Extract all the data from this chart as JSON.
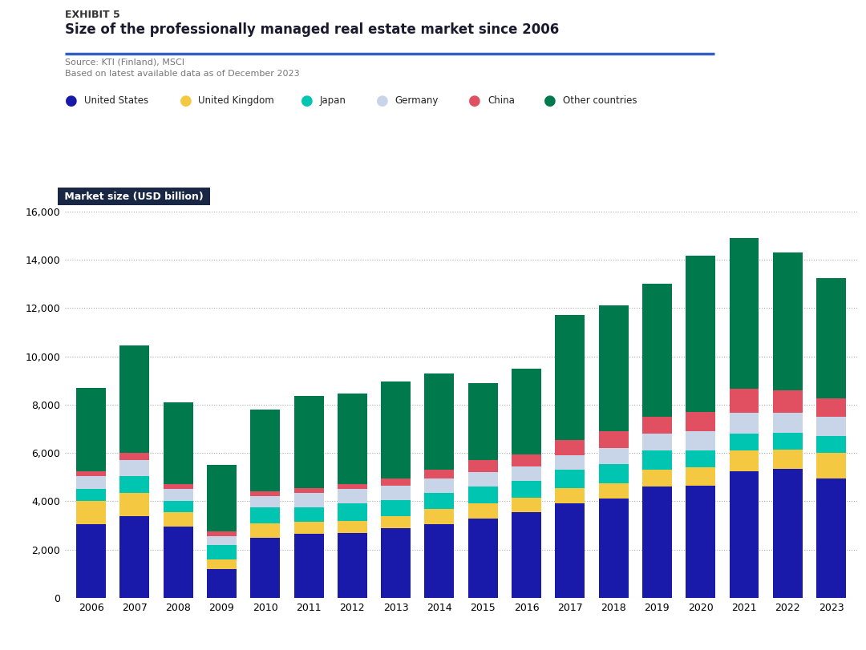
{
  "years": [
    2006,
    2007,
    2008,
    2009,
    2010,
    2011,
    2012,
    2013,
    2014,
    2015,
    2016,
    2017,
    2018,
    2019,
    2020,
    2021,
    2022,
    2023
  ],
  "series": {
    "United States": [
      3050,
      3400,
      2950,
      1200,
      2500,
      2650,
      2700,
      2900,
      3050,
      3300,
      3550,
      3900,
      4100,
      4600,
      4650,
      5250,
      5350,
      4950
    ],
    "United Kingdom": [
      950,
      950,
      600,
      400,
      600,
      500,
      500,
      500,
      650,
      600,
      600,
      650,
      650,
      700,
      750,
      850,
      800,
      1050
    ],
    "Japan": [
      500,
      700,
      450,
      600,
      650,
      600,
      700,
      650,
      650,
      700,
      700,
      750,
      800,
      800,
      700,
      700,
      700,
      700
    ],
    "Germany": [
      550,
      650,
      500,
      350,
      450,
      600,
      600,
      600,
      600,
      600,
      600,
      600,
      650,
      700,
      800,
      850,
      800,
      800
    ],
    "China": [
      200,
      300,
      200,
      200,
      200,
      200,
      200,
      300,
      350,
      500,
      500,
      650,
      700,
      700,
      800,
      1000,
      950,
      750
    ],
    "Other countries": [
      3450,
      4450,
      3400,
      2750,
      3400,
      3800,
      3750,
      4000,
      4000,
      3200,
      3550,
      5150,
      5200,
      5500,
      6450,
      6250,
      5700,
      5000
    ]
  },
  "colors": {
    "United States": "#1a1aaa",
    "United Kingdom": "#f5c842",
    "Japan": "#00c5b0",
    "Germany": "#c8d4e8",
    "China": "#e05060",
    "Other countries": "#007a4d"
  },
  "exhibit_label": "EXHIBIT 5",
  "title": "Size of the professionally managed real estate market since 2006",
  "source_line1": "Source: KTI (Finland), MSCI",
  "source_line2": "Based on latest available data as of December 2023",
  "ylabel": "Market size (USD billion)",
  "ylim": [
    0,
    16000
  ],
  "yticks": [
    0,
    2000,
    4000,
    6000,
    8000,
    10000,
    12000,
    14000,
    16000
  ],
  "line_color": "#3060c0",
  "background_color": "#ffffff",
  "ylabel_box_color": "#1a2744",
  "ylabel_text_color": "#ffffff"
}
